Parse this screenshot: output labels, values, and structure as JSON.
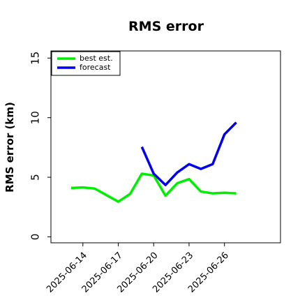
{
  "chart_data": {
    "type": "line",
    "title": "RMS error",
    "ylabel": "RMS error (km)",
    "x": [
      "2025-06-13",
      "2025-06-14",
      "2025-06-15",
      "2025-06-16",
      "2025-06-17",
      "2025-06-18",
      "2025-06-19",
      "2025-06-20",
      "2025-06-21",
      "2025-06-22",
      "2025-06-23",
      "2025-06-24",
      "2025-06-25",
      "2025-06-26",
      "2025-06-27"
    ],
    "series": [
      {
        "name": "best est.",
        "color": "#00ee00",
        "values": [
          4.1,
          4.15,
          4.05,
          3.5,
          2.95,
          3.6,
          5.3,
          5.15,
          3.45,
          4.5,
          4.85,
          3.8,
          3.65,
          3.7,
          3.65
        ]
      },
      {
        "name": "forecast",
        "color": "#0000ee",
        "values": [
          null,
          null,
          null,
          null,
          null,
          null,
          7.55,
          5.3,
          4.35,
          5.4,
          6.1,
          5.7,
          6.1,
          8.6,
          9.6
        ]
      }
    ],
    "xlim": [
      "2025-06-11T07:00",
      "2025-06-30T18:00"
    ],
    "xticks": [
      "2025-06-14",
      "2025-06-17",
      "2025-06-20",
      "2025-06-23",
      "2025-06-26"
    ],
    "ylim": [
      -0.5,
      15.6
    ],
    "yticks": [
      0,
      5,
      10,
      15
    ],
    "legend": "upper left"
  }
}
